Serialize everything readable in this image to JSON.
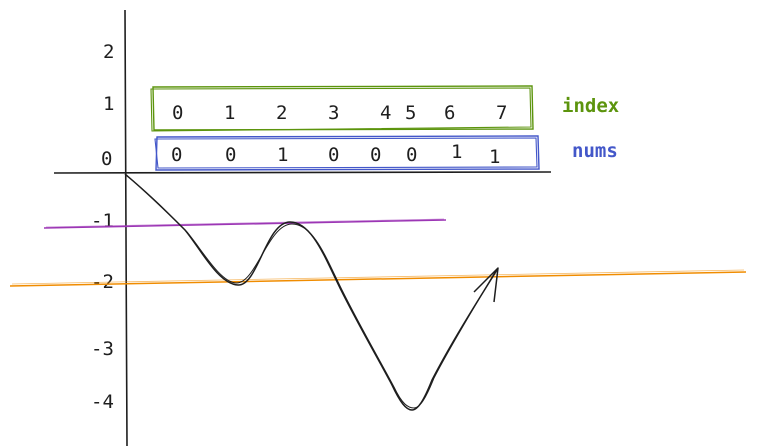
{
  "y_axis_labels": [
    "2",
    "1",
    "0",
    "-1",
    "-2",
    "-3",
    "-4"
  ],
  "index_row": {
    "label": "index",
    "values": [
      "0",
      "1",
      "2",
      "3",
      "4",
      "5",
      "6",
      "7"
    ],
    "color": "#5c940d"
  },
  "nums_row": {
    "label": "nums",
    "values": [
      "0",
      "0",
      "1",
      "0",
      "0",
      "0",
      "1",
      "1"
    ],
    "color": "#4357c9"
  },
  "colors": {
    "ink": "#1e1e1e",
    "purple_line": "#9c36b5",
    "orange_line": "#f08c00"
  }
}
